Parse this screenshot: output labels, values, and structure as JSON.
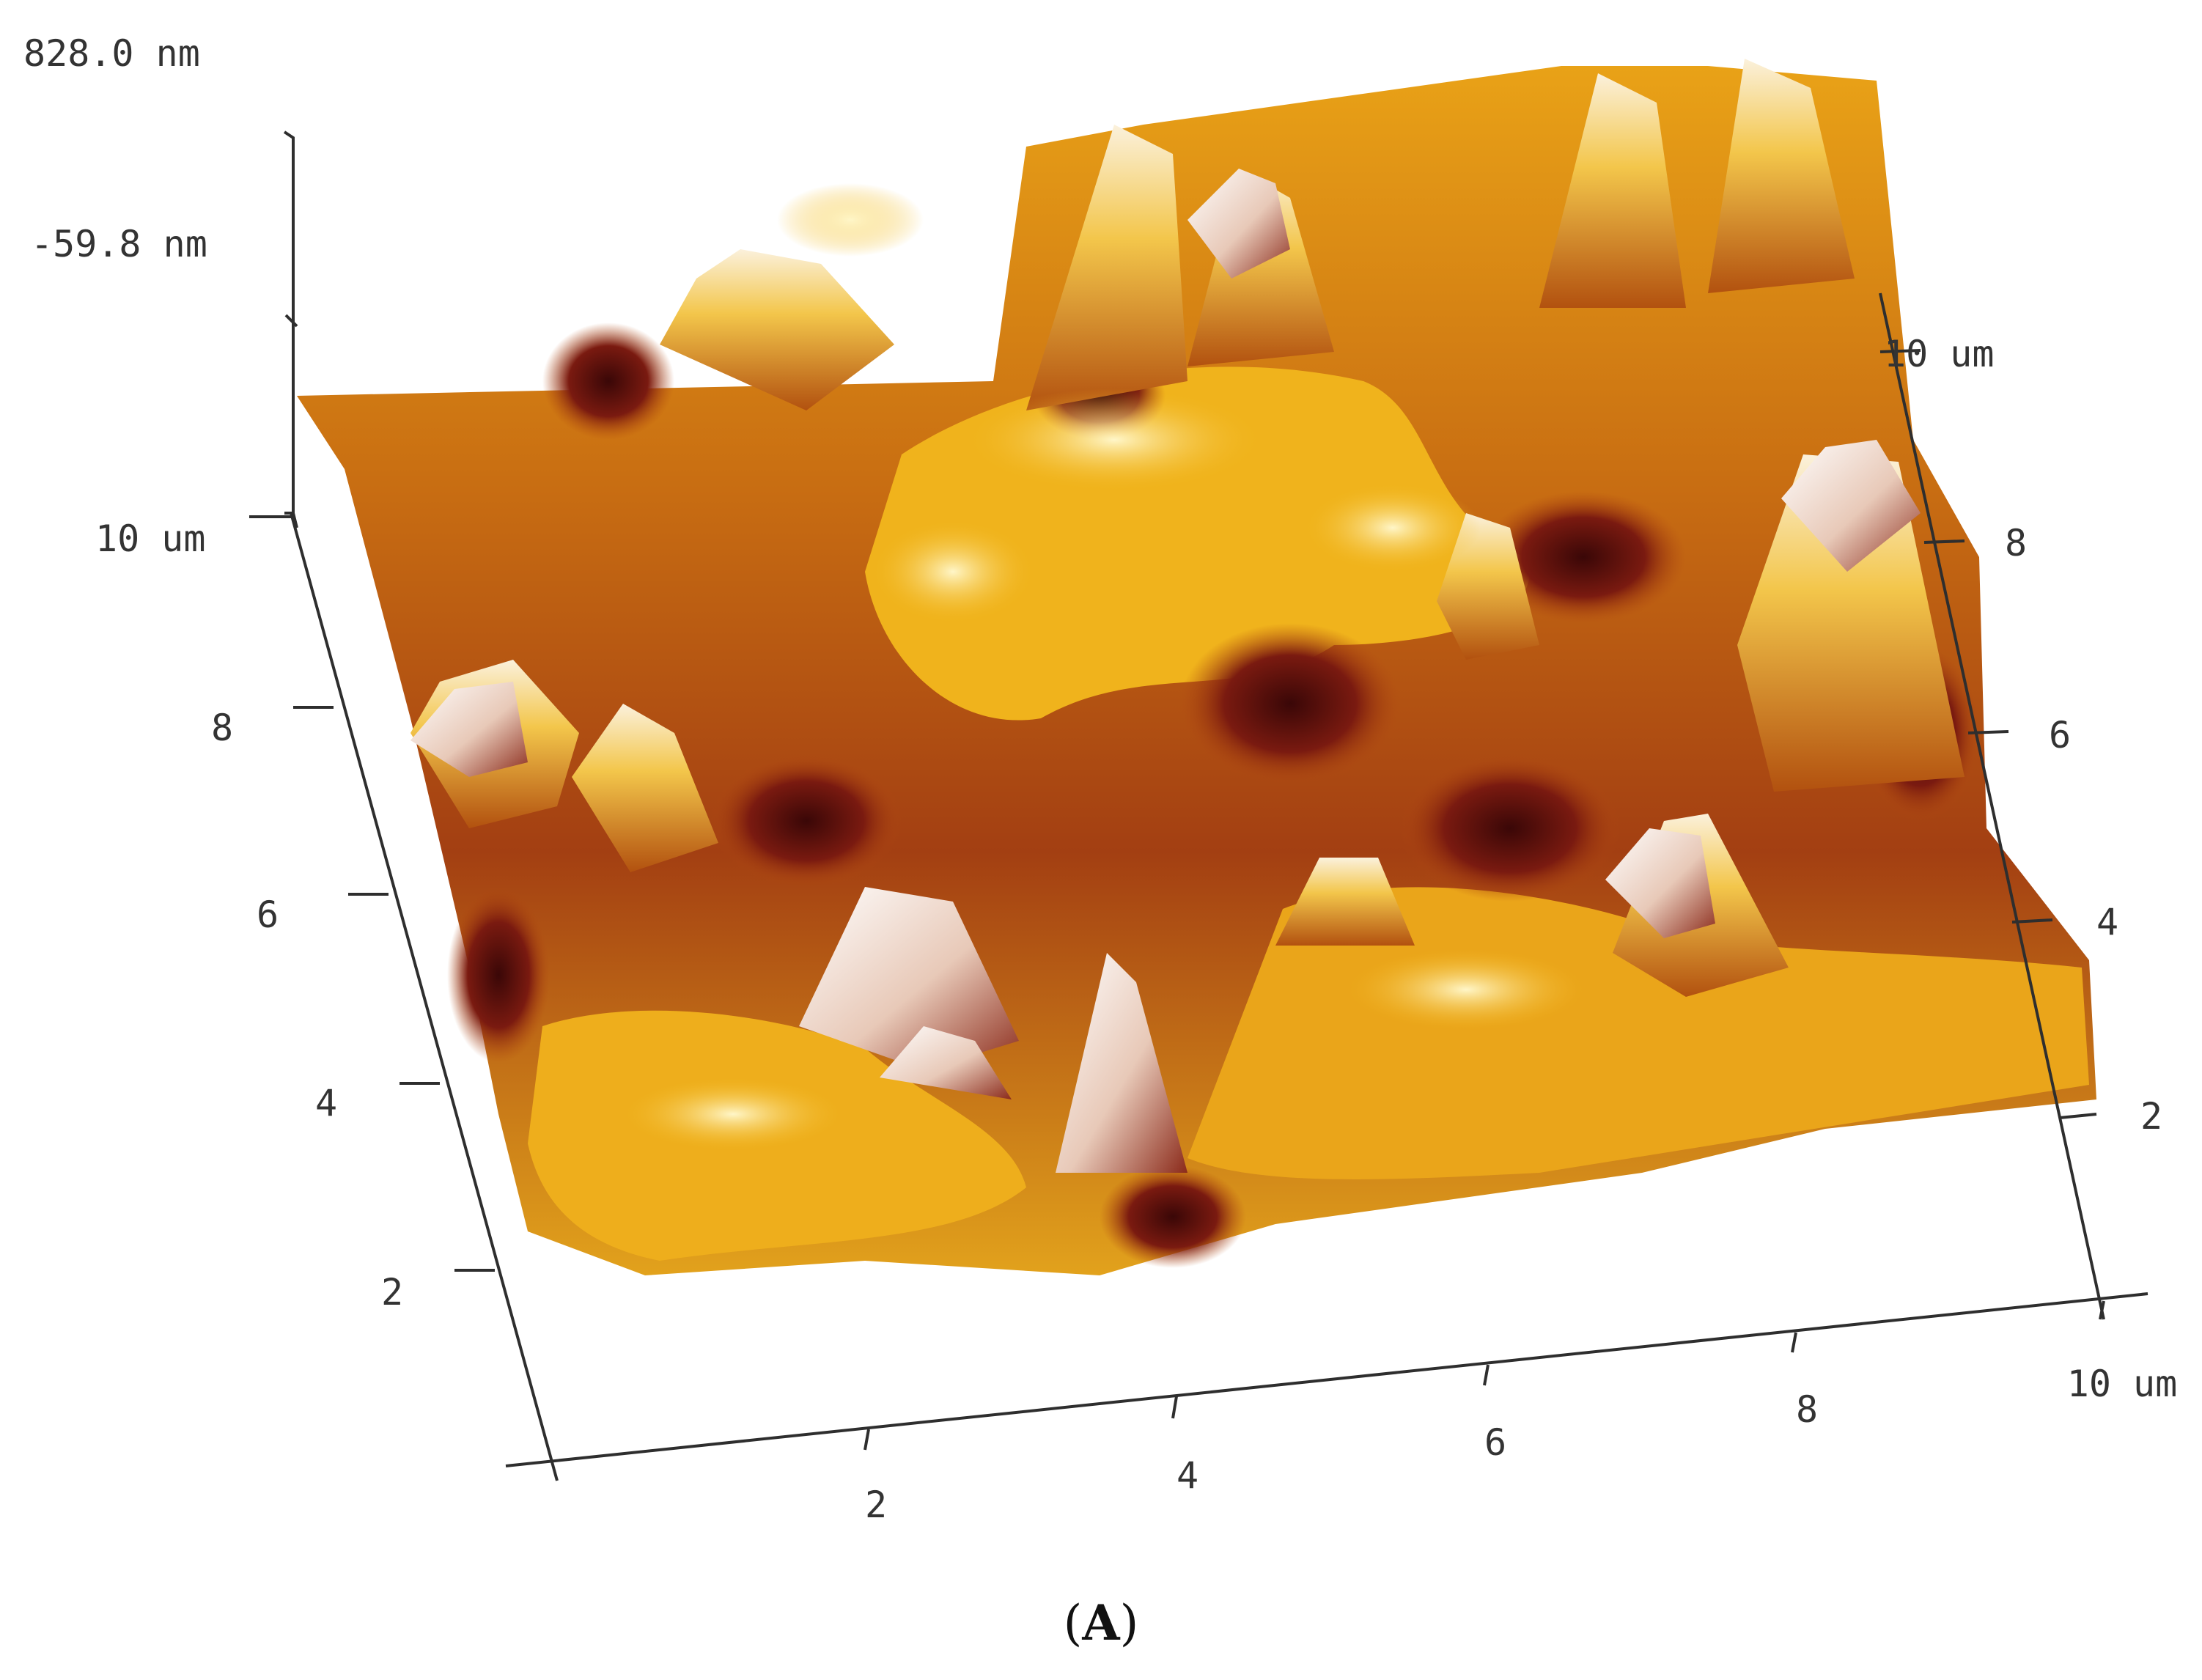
{
  "chart_data": {
    "type": "surface-3d",
    "z_axis": {
      "max_label": "828.0 nm",
      "mid_label": "-59.8 nm"
    },
    "left_axis": {
      "ticks": [
        "2",
        "4",
        "6",
        "8",
        "10 um"
      ]
    },
    "bottom_axis": {
      "ticks": [
        "2",
        "4",
        "6",
        "8",
        "10 um"
      ]
    },
    "right_axis": {
      "ticks": [
        "2",
        "4",
        "6",
        "8",
        "10 um"
      ]
    },
    "colormap": [
      "#5a0d0d",
      "#8b1e10",
      "#c0560f",
      "#e08a12",
      "#f2b81c",
      "#f7d77a",
      "#fbf1dc"
    ]
  },
  "caption": {
    "open": "(",
    "letter": "A",
    "close": ")"
  }
}
